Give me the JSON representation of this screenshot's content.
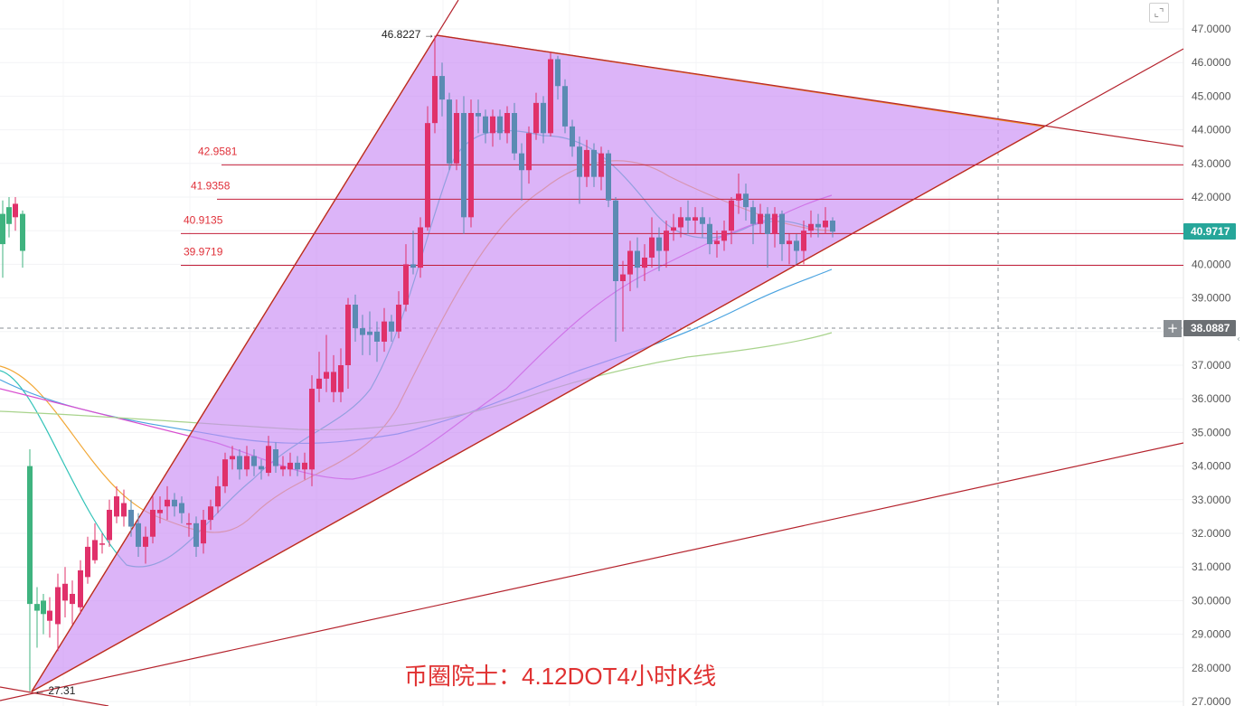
{
  "caption": "币圈院士：4.12DOT4小时K线",
  "toolbar": {
    "corner_icon": "fullscreen-icon",
    "plus_icon": "add-icon",
    "plus_symbol": "+",
    "corner_symbol": "⌞⌝"
  },
  "price_axis": {
    "ticks": [
      "47.0000",
      "46.0000",
      "45.0000",
      "44.0000",
      "43.0000",
      "42.0000",
      "41.0000",
      "40.0000",
      "39.0000",
      "38.0000",
      "37.0000",
      "36.0000",
      "35.0000",
      "34.0000",
      "33.0000",
      "32.0000",
      "31.0000",
      "30.0000",
      "29.0000",
      "28.0000",
      "27.0000"
    ],
    "current_price": "40.9717",
    "current_price_color": "#26a69a",
    "crosshair_price": "38.0887",
    "crosshair_color": "#6b6f73"
  },
  "annotations": {
    "peak_label": "46.8227",
    "low_label": "27.31",
    "levels": [
      {
        "label": "42.9581",
        "value": 42.9581
      },
      {
        "label": "41.9358",
        "value": 41.9358
      },
      {
        "label": "40.9135",
        "value": 40.9135
      },
      {
        "label": "39.9719",
        "value": 39.9719
      }
    ]
  },
  "colors": {
    "up_candle": "#e0316a",
    "down_candle": "#5b8bb3",
    "early_candle": "#3fb37f",
    "triangle_fill": "#c98cf5",
    "triangle_stroke": "#f08a24",
    "trend_line": "#b5242e",
    "level_line": "#c21f3a"
  }
}
